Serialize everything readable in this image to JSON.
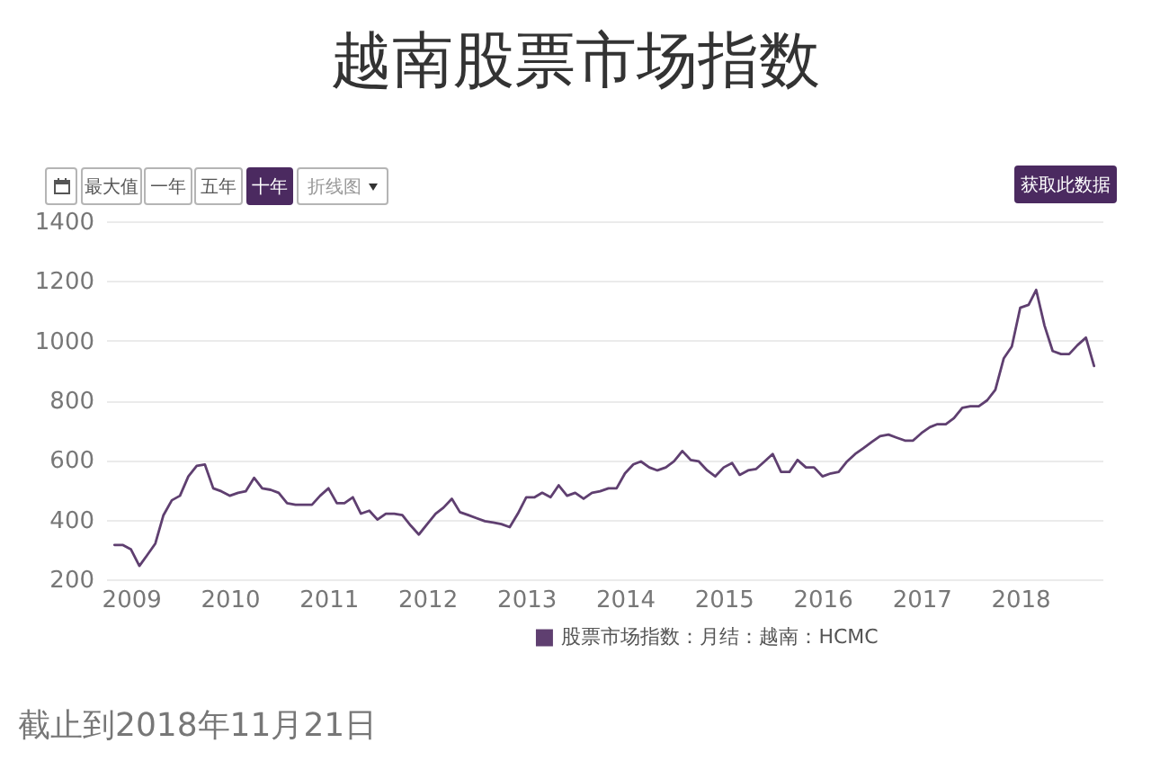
{
  "chart_data": {
    "type": "line",
    "title": "越南股票市场指数",
    "x": [
      "2008-11",
      "2008-12",
      "2009-01",
      "2009-02",
      "2009-03",
      "2009-04",
      "2009-05",
      "2009-06",
      "2009-07",
      "2009-08",
      "2009-09",
      "2009-10",
      "2009-11",
      "2009-12",
      "2010-01",
      "2010-02",
      "2010-03",
      "2010-04",
      "2010-05",
      "2010-06",
      "2010-07",
      "2010-08",
      "2010-09",
      "2010-10",
      "2010-11",
      "2010-12",
      "2011-01",
      "2011-02",
      "2011-03",
      "2011-04",
      "2011-05",
      "2011-06",
      "2011-07",
      "2011-08",
      "2011-09",
      "2011-10",
      "2011-11",
      "2011-12",
      "2012-01",
      "2012-02",
      "2012-03",
      "2012-04",
      "2012-05",
      "2012-06",
      "2012-07",
      "2012-08",
      "2012-09",
      "2012-10",
      "2012-11",
      "2012-12",
      "2013-01",
      "2013-02",
      "2013-03",
      "2013-04",
      "2013-05",
      "2013-06",
      "2013-07",
      "2013-08",
      "2013-09",
      "2013-10",
      "2013-11",
      "2013-12",
      "2014-01",
      "2014-02",
      "2014-03",
      "2014-04",
      "2014-05",
      "2014-06",
      "2014-07",
      "2014-08",
      "2014-09",
      "2014-10",
      "2014-11",
      "2014-12",
      "2015-01",
      "2015-02",
      "2015-03",
      "2015-04",
      "2015-05",
      "2015-06",
      "2015-07",
      "2015-08",
      "2015-09",
      "2015-10",
      "2015-11",
      "2015-12",
      "2016-01",
      "2016-02",
      "2016-03",
      "2016-04",
      "2016-05",
      "2016-06",
      "2016-07",
      "2016-08",
      "2016-09",
      "2016-10",
      "2016-11",
      "2016-12",
      "2017-01",
      "2017-02",
      "2017-03",
      "2017-04",
      "2017-05",
      "2017-06",
      "2017-07",
      "2017-08",
      "2017-09",
      "2017-10",
      "2017-11",
      "2017-12",
      "2018-01",
      "2018-02",
      "2018-03",
      "2018-04",
      "2018-05",
      "2018-06",
      "2018-07",
      "2018-08",
      "2018-09",
      "2018-10"
    ],
    "series": [
      {
        "name": "股票市场指数：月结：越南：HCMC",
        "color": "#5f3f70",
        "values": [
          315,
          315,
          300,
          245,
          280,
          320,
          415,
          465,
          480,
          545,
          580,
          585,
          505,
          495,
          480,
          490,
          495,
          540,
          505,
          500,
          490,
          455,
          450,
          450,
          450,
          480,
          505,
          455,
          455,
          475,
          420,
          430,
          400,
          420,
          420,
          415,
          380,
          350,
          385,
          420,
          440,
          470,
          425,
          415,
          405,
          395,
          390,
          385,
          375,
          420,
          475,
          475,
          490,
          475,
          515,
          480,
          490,
          470,
          490,
          495,
          505,
          505,
          555,
          585,
          595,
          575,
          565,
          575,
          595,
          630,
          600,
          595,
          565,
          545,
          575,
          590,
          550,
          565,
          570,
          595,
          620,
          560,
          560,
          600,
          575,
          575,
          545,
          555,
          560,
          595,
          620,
          640,
          660,
          680,
          685,
          675,
          665,
          665,
          690,
          710,
          720,
          720,
          740,
          775,
          780,
          780,
          800,
          835,
          940,
          980,
          1110,
          1120,
          1170,
          1050,
          965,
          955,
          955,
          985,
          1010,
          915
        ]
      }
    ],
    "xlim": [
      "2008-10",
      "2018-11"
    ],
    "xticks": [
      "2009",
      "2010",
      "2011",
      "2012",
      "2013",
      "2014",
      "2015",
      "2016",
      "2017",
      "2018"
    ],
    "ylim": [
      200,
      1400
    ],
    "yticks": [
      200,
      400,
      600,
      800,
      1000,
      1200,
      1400
    ],
    "grid": "y",
    "legend": "bottom",
    "annotations": [
      "最大值",
      "一年",
      "五年",
      "十年",
      "折线图",
      "获取此数据",
      "截止到2018年11月21日"
    ]
  }
}
